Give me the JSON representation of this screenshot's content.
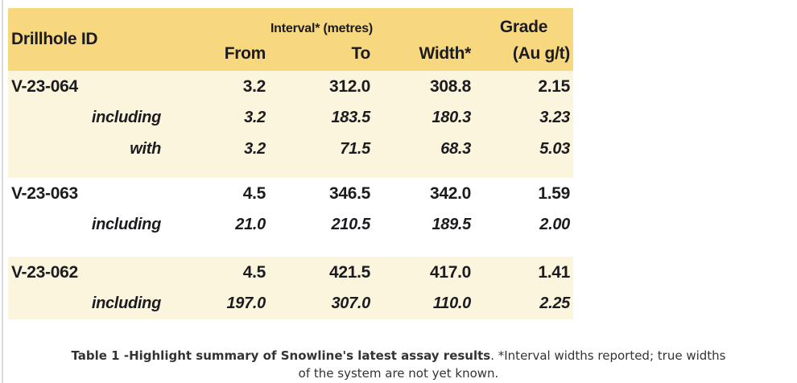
{
  "table": {
    "header": {
      "drillhole": "Drillhole ID",
      "interval_group": "Interval* (metres)",
      "grade_top": "Grade",
      "from": "From",
      "to": "To",
      "width": "Width*",
      "grade_unit": "(Au g/t)"
    },
    "groups": [
      {
        "rows": [
          {
            "id": "V-23-064",
            "from": "3.2",
            "to": "312.0",
            "width": "308.8",
            "grade": "2.15"
          },
          {
            "id": "including",
            "from": "3.2",
            "to": "183.5",
            "width": "180.3",
            "grade": "3.23"
          },
          {
            "id": "with",
            "from": "3.2",
            "to": "71.5",
            "width": "68.3",
            "grade": "5.03"
          }
        ]
      },
      {
        "rows": [
          {
            "id": "V-23-063",
            "from": "4.5",
            "to": "346.5",
            "width": "342.0",
            "grade": "1.59"
          },
          {
            "id": "including",
            "from": "21.0",
            "to": "210.5",
            "width": "189.5",
            "grade": "2.00"
          }
        ]
      },
      {
        "rows": [
          {
            "id": "V-23-062",
            "from": "4.5",
            "to": "421.5",
            "width": "417.0",
            "grade": "1.41"
          },
          {
            "id": "including",
            "from": "197.0",
            "to": "307.0",
            "width": "110.0",
            "grade": "2.25"
          }
        ]
      }
    ]
  },
  "caption": {
    "line1_bold": "Table 1 -Highlight summary of Snowline's latest assay results",
    "line1_regular": ". *Interval widths reported; true widths",
    "line2": "of the system are not yet known."
  },
  "colors": {
    "header_bg": "#f7d87e",
    "group_cream_bg": "#fcf5dd",
    "group_white_bg": "#ffffff",
    "table_text": "#1b1b20",
    "caption_text": "#333333",
    "left_rule": "#d9d9d9"
  }
}
